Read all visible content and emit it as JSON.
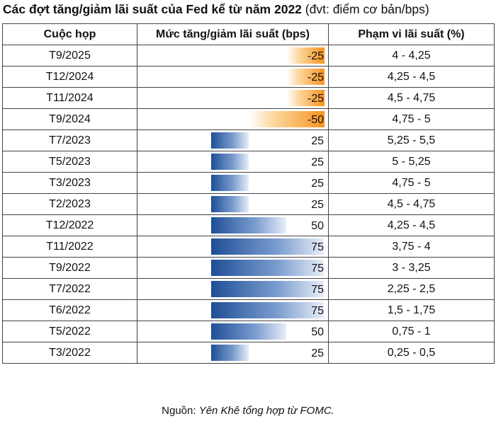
{
  "title": {
    "main": "Các đợt tăng/giảm lãi suất của Fed kể từ năm 2022",
    "unit": "(đvt: điểm cơ bản/bps)"
  },
  "headers": {
    "meeting": "Cuộc họp",
    "change": "Mức tăng/giảm lãi suất (bps)",
    "range": "Phạm vi lãi suất (%)"
  },
  "source": {
    "prefix": "Nguồn: ",
    "text": "Yên Khê tổng hợp từ FOMC."
  },
  "colors": {
    "cut": "#f7931e",
    "hike": "#1f4e96"
  },
  "chart_data": {
    "type": "table",
    "title": "Các đợt tăng/giảm lãi suất của Fed kể từ năm 2022",
    "columns": [
      "Cuộc họp",
      "Mức tăng/giảm lãi suất (bps)",
      "Phạm vi lãi suất (%)"
    ],
    "rows": [
      {
        "meeting": "T9/2025",
        "change": -25,
        "change_label": "-25",
        "range": "4 - 4,25"
      },
      {
        "meeting": "T12/2024",
        "change": -25,
        "change_label": "-25",
        "range": "4,25 - 4,5"
      },
      {
        "meeting": "T11/2024",
        "change": -25,
        "change_label": "-25",
        "range": "4,5 - 4,75"
      },
      {
        "meeting": "T9/2024",
        "change": -50,
        "change_label": "-50",
        "range": "4,75 - 5"
      },
      {
        "meeting": "T7/2023",
        "change": 25,
        "change_label": "25",
        "range": "5,25 - 5,5"
      },
      {
        "meeting": "T5/2023",
        "change": 25,
        "change_label": "25",
        "range": "5 - 5,25"
      },
      {
        "meeting": "T3/2023",
        "change": 25,
        "change_label": "25",
        "range": "4,75 - 5"
      },
      {
        "meeting": "T2/2023",
        "change": 25,
        "change_label": "25",
        "range": "4,5 - 4,75"
      },
      {
        "meeting": "T12/2022",
        "change": 50,
        "change_label": "50",
        "range": "4,25 - 4,5"
      },
      {
        "meeting": "T11/2022",
        "change": 75,
        "change_label": "75",
        "range": "3,75 - 4"
      },
      {
        "meeting": "T9/2022",
        "change": 75,
        "change_label": "75",
        "range": "3 - 3,25"
      },
      {
        "meeting": "T7/2022",
        "change": 75,
        "change_label": "75",
        "range": "2,25 - 2,5"
      },
      {
        "meeting": "T6/2022",
        "change": 75,
        "change_label": "75",
        "range": "1,5 - 1,75"
      },
      {
        "meeting": "T5/2022",
        "change": 50,
        "change_label": "50",
        "range": "0,75 - 1"
      },
      {
        "meeting": "T3/2022",
        "change": 25,
        "change_label": "25",
        "range": "0,25 - 0,5"
      }
    ]
  }
}
